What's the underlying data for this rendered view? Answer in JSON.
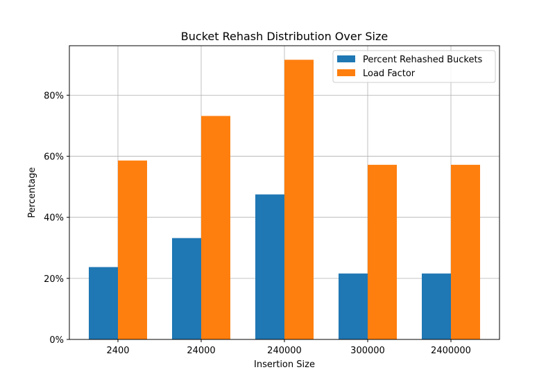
{
  "chart_data": {
    "type": "bar",
    "title": "Bucket Rehash Distribution Over Size",
    "xlabel": "Insertion Size",
    "ylabel": "Percentage",
    "categories": [
      "2400",
      "24000",
      "240000",
      "300000",
      "2400000"
    ],
    "series": [
      {
        "name": "Percent Rehashed Buckets",
        "color": "#1f77b4",
        "values": [
          23.7,
          33.2,
          47.5,
          21.6,
          21.6
        ]
      },
      {
        "name": "Load Factor",
        "color": "#ff7f0e",
        "values": [
          58.6,
          73.2,
          91.6,
          57.2,
          57.2
        ]
      }
    ],
    "ylim": [
      0,
      96.2
    ],
    "yticks": [
      0,
      20,
      40,
      60,
      80
    ],
    "ytick_labels": [
      "0%",
      "20%",
      "40%",
      "60%",
      "80%"
    ],
    "grid": true,
    "legend_position": "top-right"
  }
}
